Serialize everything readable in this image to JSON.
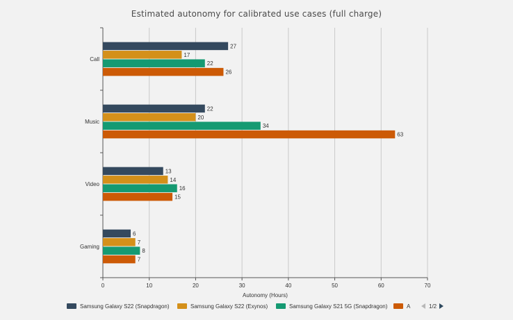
{
  "chart_data": {
    "type": "bar",
    "orientation": "horizontal",
    "title": "Estimated autonomy for calibrated use cases (full charge)",
    "xlabel": "Autonomy (Hours)",
    "ylabel": "",
    "categories": [
      "Call",
      "Music",
      "Video",
      "Gaming"
    ],
    "xlim": [
      0,
      70
    ],
    "xticks": [
      "0",
      "10",
      "20",
      "30",
      "40",
      "50",
      "60",
      "70"
    ],
    "grid": "vertical",
    "legend_position": "bottom",
    "series": [
      {
        "name": "Samsung Galaxy S22 (Snapdragon)",
        "color": "#34495e",
        "values": [
          27,
          22,
          13,
          6
        ]
      },
      {
        "name": "Samsung Galaxy S22 (Exynos)",
        "color": "#d4901a",
        "values": [
          17,
          20,
          14,
          7
        ]
      },
      {
        "name": "Samsung Galaxy S21 5G (Snapdragon)",
        "color": "#159a72",
        "values": [
          22,
          34,
          16,
          8
        ]
      },
      {
        "name": "A",
        "color": "#cc5a06",
        "values": [
          26,
          63,
          15,
          7
        ]
      }
    ]
  },
  "legend": {
    "pager_text": "1/2",
    "prev_icon": "triangle-left-icon",
    "next_icon": "triangle-right-icon"
  }
}
